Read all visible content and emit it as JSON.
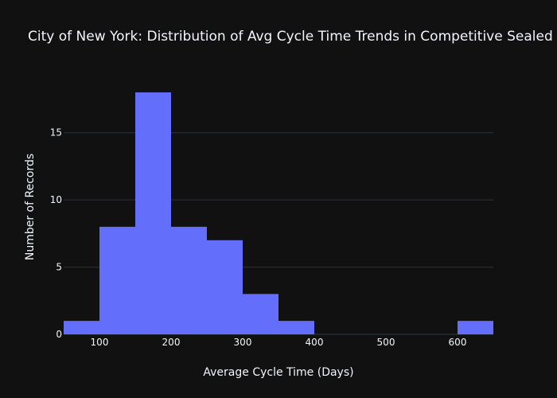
{
  "chart_data": {
    "type": "bar",
    "title": "City of New York: Distribution of Avg Cycle Time Trends in Competitive Sealed Bids",
    "xlabel": "Average Cycle Time (Days)",
    "ylabel": "Number of Records",
    "bin_width": 50,
    "bins": [
      {
        "start": 50,
        "end": 100,
        "count": 1
      },
      {
        "start": 100,
        "end": 150,
        "count": 8
      },
      {
        "start": 150,
        "end": 200,
        "count": 18
      },
      {
        "start": 200,
        "end": 250,
        "count": 8
      },
      {
        "start": 250,
        "end": 300,
        "count": 7
      },
      {
        "start": 300,
        "end": 350,
        "count": 3
      },
      {
        "start": 350,
        "end": 400,
        "count": 1
      },
      {
        "start": 400,
        "end": 450,
        "count": 0
      },
      {
        "start": 450,
        "end": 500,
        "count": 0
      },
      {
        "start": 500,
        "end": 550,
        "count": 0
      },
      {
        "start": 550,
        "end": 600,
        "count": 0
      },
      {
        "start": 600,
        "end": 650,
        "count": 1
      }
    ],
    "xlim": [
      50,
      650
    ],
    "ylim": [
      0,
      18.95
    ],
    "x_ticks": [
      100,
      200,
      300,
      400,
      500,
      600
    ],
    "y_ticks": [
      0,
      5,
      10,
      15
    ],
    "grid": true,
    "bar_color": "#636efa",
    "background_color": "#111111",
    "grid_color": "#283442"
  }
}
